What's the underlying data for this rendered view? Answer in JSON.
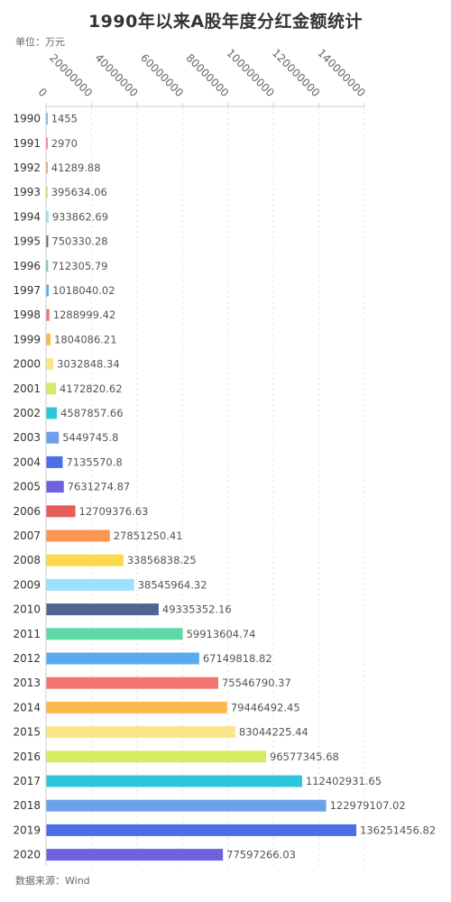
{
  "chart_data": {
    "type": "bar",
    "orientation": "horizontal",
    "title": "1990年以来A股年度分红金额统计",
    "unit_label": "单位：万元",
    "source": "数据来源：Wind",
    "categories": [
      "1990",
      "1991",
      "1992",
      "1993",
      "1994",
      "1995",
      "1996",
      "1997",
      "1998",
      "1999",
      "2000",
      "2001",
      "2002",
      "2003",
      "2004",
      "2005",
      "2006",
      "2007",
      "2008",
      "2009",
      "2010",
      "2011",
      "2012",
      "2013",
      "2014",
      "2015",
      "2016",
      "2017",
      "2018",
      "2019",
      "2020"
    ],
    "values": [
      1455,
      2970,
      41289.88,
      395634.06,
      933862.69,
      750330.28,
      712305.79,
      1018040.02,
      1288999.42,
      1804086.21,
      3032848.34,
      4172820.62,
      4587857.66,
      5449745.8,
      7135570.8,
      7631274.87,
      12709376.63,
      27851250.41,
      33856838.25,
      38545964.32,
      49335352.16,
      59913604.74,
      67149818.82,
      75546790.37,
      79446492.45,
      83044225.44,
      96577345.68,
      112402931.65,
      122979107.02,
      136251456.82,
      77597266.03
    ],
    "value_labels": [
      "1455",
      "2970",
      "41289.88",
      "395634.06",
      "933862.69",
      "750330.28",
      "712305.79",
      "1018040.02",
      "1288999.42",
      "1804086.21",
      "3032848.34",
      "4172820.62",
      "4587857.66",
      "5449745.8",
      "7135570.8",
      "7631274.87",
      "12709376.63",
      "27851250.41",
      "33856838.25",
      "38545964.32",
      "49335352.16",
      "59913604.74",
      "67149818.82",
      "75546790.37",
      "79446492.45",
      "83044225.44",
      "96577345.68",
      "112402931.65",
      "122979107.02",
      "136251456.82",
      "77597266.03"
    ],
    "xticks": [
      0,
      20000000,
      40000000,
      60000000,
      80000000,
      100000000,
      120000000,
      140000000
    ],
    "xtick_labels": [
      "0",
      "20000000",
      "40000000",
      "60000000",
      "80000000",
      "100000000",
      "120000000",
      "140000000"
    ],
    "xlim": [
      0,
      140000000
    ],
    "grid": true,
    "colors": [
      "#5b9bd5",
      "#ee6666",
      "#fc8452",
      "#fac858",
      "#a2dbf7",
      "#4f6a94",
      "#5dd6a4",
      "#5aa9ed",
      "#f47373",
      "#fcb951",
      "#fde58a",
      "#d4ec63",
      "#2cc7dc",
      "#6e9fe8",
      "#4b6fe5",
      "#7062df",
      "#e45b5a",
      "#fb9552",
      "#fcda4a",
      "#9ee0f9",
      "#506591",
      "#5fd9a8",
      "#5aabee",
      "#f47472",
      "#fcb950",
      "#fde58b",
      "#d4ec63",
      "#2cc6dd",
      "#6da1e9",
      "#4a6ee6",
      "#7061de"
    ]
  }
}
